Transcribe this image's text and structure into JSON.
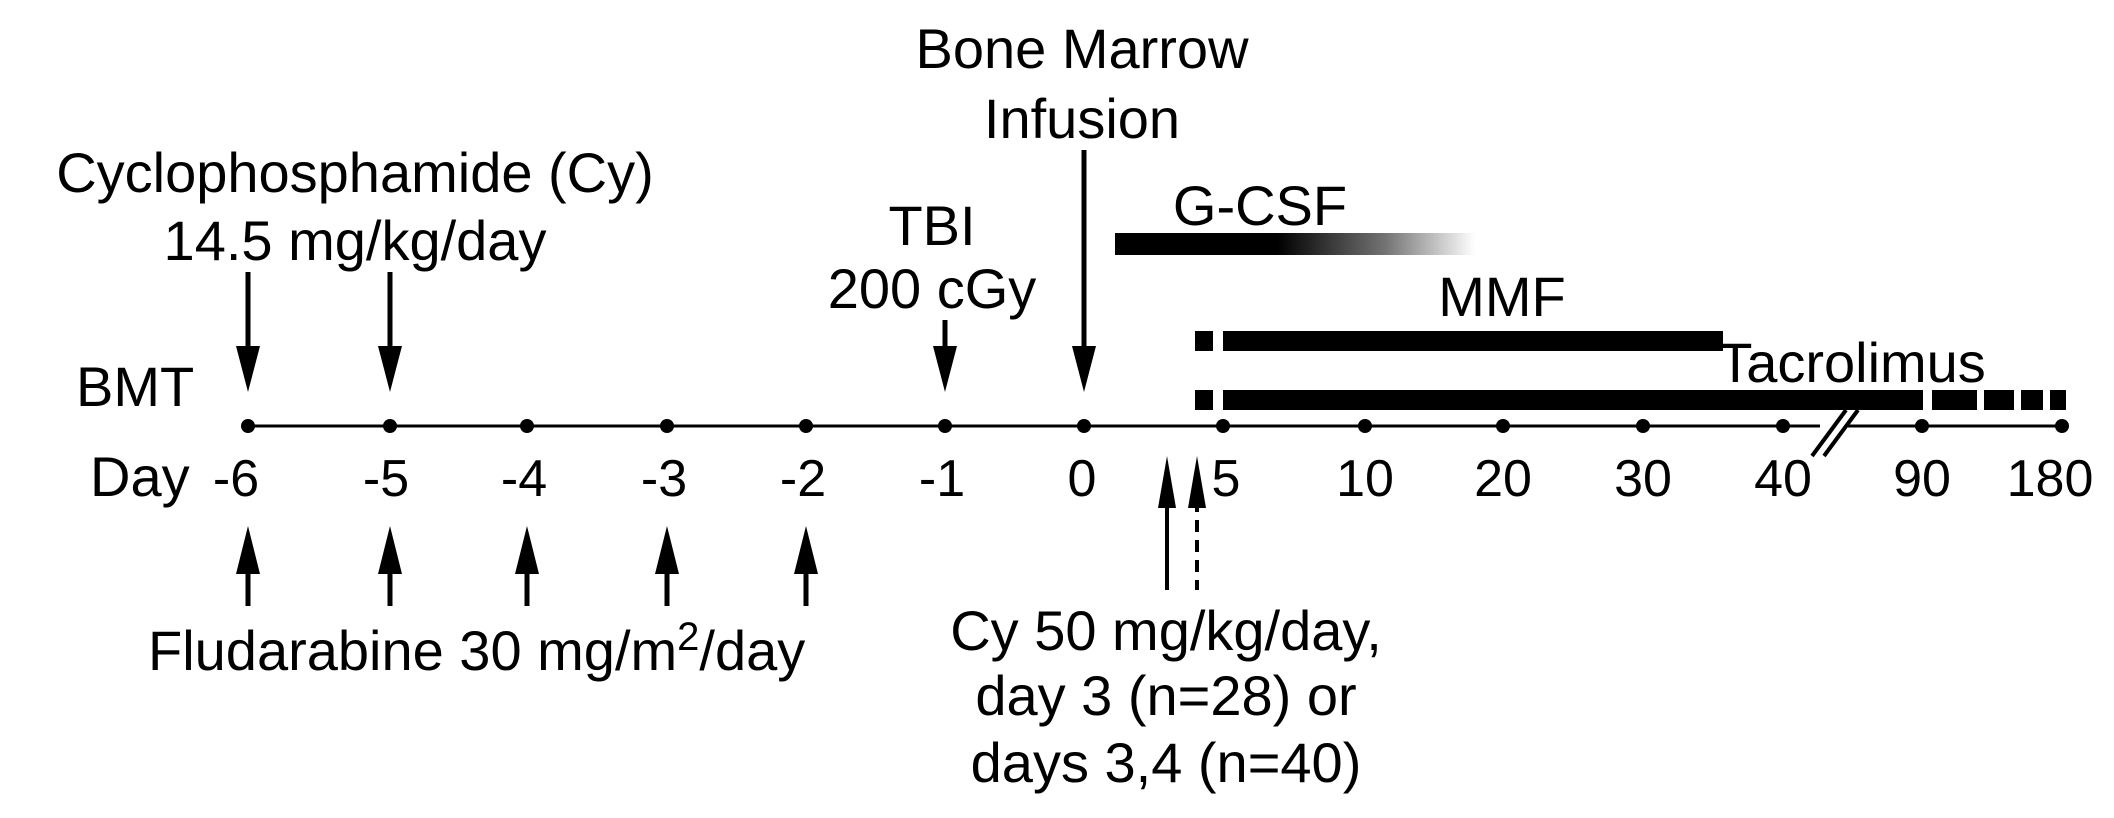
{
  "title_bmt": "BMT",
  "day_label": "Day",
  "day_ticks": [
    "-6",
    "-5",
    "-4",
    "-3",
    "-2",
    "-1",
    "0",
    "5",
    "10",
    "20",
    "30",
    "40",
    "90",
    "180"
  ],
  "cyclophosphamide": {
    "line1": "Cyclophosphamide (Cy)",
    "line2": "14.5 mg/kg/day"
  },
  "tbi": {
    "line1": "TBI",
    "line2": "200 cGy"
  },
  "bone_marrow": {
    "line1": "Bone Marrow",
    "line2": "Infusion"
  },
  "gcsf": "G-CSF",
  "mmf": "MMF",
  "tacrolimus": "Tacrolimus",
  "fludarabine": {
    "text": "Fludarabine 30 mg/m",
    "superscript": "2",
    "suffix": "/day"
  },
  "post_cy": {
    "line1": "Cy 50 mg/kg/day,",
    "line2": "day 3 (n=28) or",
    "line3": "days 3,4 (n=40)"
  },
  "colors": {
    "ink": "#000000",
    "background": "#ffffff"
  }
}
